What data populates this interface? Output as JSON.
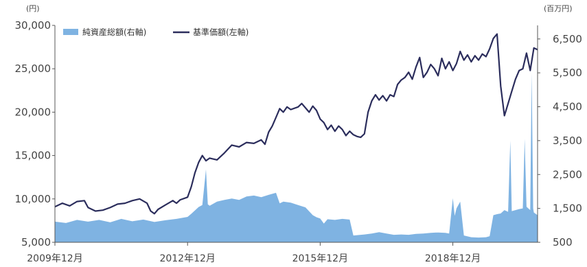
{
  "colors": {
    "line": "#2b2d5c",
    "area": "#7fb3e2",
    "axis": "#555555",
    "tick_text": "#444444"
  },
  "chart_data": {
    "type": "line",
    "left_unit": "(円)",
    "right_unit": "(百万円)",
    "legend": [
      {
        "label": "純資産総額(右軸)",
        "kind": "area"
      },
      {
        "label": "基準価額(左軸)",
        "kind": "line"
      }
    ],
    "left_axis": {
      "ylim": [
        5000,
        30000
      ],
      "ticks": [
        5000,
        10000,
        15000,
        20000,
        25000,
        30000
      ],
      "tick_labels": [
        "5,000",
        "10,000",
        "15,000",
        "20,000",
        "25,000",
        "30,000"
      ]
    },
    "right_axis": {
      "ylim": [
        500,
        6900
      ],
      "ticks": [
        500,
        1500,
        2500,
        3500,
        4500,
        5500,
        6500
      ],
      "tick_labels": [
        "500",
        "1,500",
        "2,500",
        "3,500",
        "4,500",
        "5,500",
        "6,500"
      ]
    },
    "x_ticks": [
      "2009年12月",
      "2012年12月",
      "2015年12月",
      "2018年12月"
    ],
    "x_tick_values": [
      0,
      36,
      72,
      108
    ],
    "x_range": [
      0,
      131
    ],
    "series": [
      {
        "name": "基準価額(左軸)",
        "axis": "left",
        "points": [
          [
            0,
            9100
          ],
          [
            2,
            9500
          ],
          [
            4,
            9200
          ],
          [
            6,
            9700
          ],
          [
            8,
            9800
          ],
          [
            9,
            9000
          ],
          [
            11,
            8600
          ],
          [
            13,
            8700
          ],
          [
            15,
            9000
          ],
          [
            17,
            9400
          ],
          [
            19,
            9500
          ],
          [
            21,
            9800
          ],
          [
            23,
            10000
          ],
          [
            25,
            9500
          ],
          [
            26,
            8600
          ],
          [
            27,
            8300
          ],
          [
            28,
            8800
          ],
          [
            30,
            9300
          ],
          [
            32,
            9800
          ],
          [
            33,
            9500
          ],
          [
            34,
            9900
          ],
          [
            36,
            10200
          ],
          [
            37,
            11400
          ],
          [
            38,
            13000
          ],
          [
            39,
            14200
          ],
          [
            40,
            15000
          ],
          [
            41,
            14400
          ],
          [
            42,
            14700
          ],
          [
            44,
            14500
          ],
          [
            46,
            15300
          ],
          [
            48,
            16200
          ],
          [
            50,
            16000
          ],
          [
            52,
            16500
          ],
          [
            54,
            16400
          ],
          [
            56,
            16800
          ],
          [
            57,
            16300
          ],
          [
            58,
            17700
          ],
          [
            59,
            18400
          ],
          [
            60,
            19400
          ],
          [
            61,
            20400
          ],
          [
            62,
            20000
          ],
          [
            63,
            20600
          ],
          [
            64,
            20300
          ],
          [
            66,
            20600
          ],
          [
            67,
            21000
          ],
          [
            68,
            20500
          ],
          [
            69,
            20000
          ],
          [
            70,
            20700
          ],
          [
            71,
            20200
          ],
          [
            72,
            19200
          ],
          [
            73,
            18800
          ],
          [
            74,
            18000
          ],
          [
            75,
            18500
          ],
          [
            76,
            17800
          ],
          [
            77,
            18400
          ],
          [
            78,
            18000
          ],
          [
            79,
            17300
          ],
          [
            80,
            17800
          ],
          [
            81,
            17400
          ],
          [
            82,
            17200
          ],
          [
            83,
            17100
          ],
          [
            84,
            17500
          ],
          [
            85,
            20000
          ],
          [
            86,
            21300
          ],
          [
            87,
            22000
          ],
          [
            88,
            21400
          ],
          [
            89,
            21900
          ],
          [
            90,
            21300
          ],
          [
            91,
            22000
          ],
          [
            92,
            21800
          ],
          [
            93,
            23200
          ],
          [
            94,
            23700
          ],
          [
            95,
            24000
          ],
          [
            96,
            24600
          ],
          [
            97,
            23800
          ],
          [
            98,
            25200
          ],
          [
            99,
            26300
          ],
          [
            100,
            24000
          ],
          [
            101,
            24600
          ],
          [
            102,
            25500
          ],
          [
            103,
            25000
          ],
          [
            104,
            24200
          ],
          [
            105,
            26200
          ],
          [
            106,
            25000
          ],
          [
            107,
            25800
          ],
          [
            108,
            24800
          ],
          [
            109,
            25600
          ],
          [
            110,
            27000
          ],
          [
            111,
            26000
          ],
          [
            112,
            26600
          ],
          [
            113,
            25800
          ],
          [
            114,
            26500
          ],
          [
            115,
            26000
          ],
          [
            116,
            26700
          ],
          [
            117,
            26400
          ],
          [
            118,
            27300
          ],
          [
            119,
            28500
          ],
          [
            120,
            29000
          ],
          [
            121,
            23000
          ],
          [
            122,
            19600
          ],
          [
            123,
            21000
          ],
          [
            124,
            22400
          ],
          [
            125,
            23800
          ],
          [
            126,
            24800
          ],
          [
            127,
            25000
          ],
          [
            128,
            26800
          ],
          [
            129,
            24800
          ],
          [
            130,
            27400
          ],
          [
            131,
            27200
          ]
        ]
      },
      {
        "name": "純資産総額(右軸)",
        "axis": "right",
        "points": [
          [
            0,
            1110
          ],
          [
            3,
            1070
          ],
          [
            6,
            1160
          ],
          [
            9,
            1110
          ],
          [
            12,
            1160
          ],
          [
            15,
            1090
          ],
          [
            18,
            1190
          ],
          [
            21,
            1120
          ],
          [
            24,
            1170
          ],
          [
            27,
            1100
          ],
          [
            30,
            1150
          ],
          [
            33,
            1190
          ],
          [
            36,
            1250
          ],
          [
            37,
            1340
          ],
          [
            38,
            1440
          ],
          [
            39,
            1540
          ],
          [
            40,
            1600
          ],
          [
            41,
            2650
          ],
          [
            41.5,
            1620
          ],
          [
            42,
            1580
          ],
          [
            44,
            1700
          ],
          [
            46,
            1750
          ],
          [
            48,
            1790
          ],
          [
            50,
            1750
          ],
          [
            52,
            1850
          ],
          [
            54,
            1880
          ],
          [
            56,
            1830
          ],
          [
            58,
            1900
          ],
          [
            60,
            1960
          ],
          [
            61,
            1650
          ],
          [
            62,
            1700
          ],
          [
            64,
            1670
          ],
          [
            66,
            1600
          ],
          [
            68,
            1530
          ],
          [
            70,
            1300
          ],
          [
            71,
            1240
          ],
          [
            72,
            1200
          ],
          [
            73,
            1050
          ],
          [
            74,
            1180
          ],
          [
            76,
            1160
          ],
          [
            78,
            1190
          ],
          [
            80,
            1170
          ],
          [
            81,
            700
          ],
          [
            84,
            730
          ],
          [
            86,
            760
          ],
          [
            88,
            800
          ],
          [
            90,
            760
          ],
          [
            92,
            720
          ],
          [
            94,
            730
          ],
          [
            96,
            720
          ],
          [
            98,
            750
          ],
          [
            100,
            760
          ],
          [
            102,
            780
          ],
          [
            104,
            790
          ],
          [
            106,
            780
          ],
          [
            107,
            760
          ],
          [
            108,
            1800
          ],
          [
            108.5,
            1280
          ],
          [
            109,
            1500
          ],
          [
            110,
            1700
          ],
          [
            111,
            700
          ],
          [
            113,
            650
          ],
          [
            115,
            640
          ],
          [
            117,
            650
          ],
          [
            118,
            680
          ],
          [
            119,
            1300
          ],
          [
            120,
            1330
          ],
          [
            121,
            1350
          ],
          [
            122,
            1450
          ],
          [
            123,
            1400
          ],
          [
            123.6,
            3500
          ],
          [
            124,
            1420
          ],
          [
            125,
            1450
          ],
          [
            126,
            1480
          ],
          [
            127,
            1500
          ],
          [
            127.5,
            3550
          ],
          [
            128,
            1550
          ],
          [
            129,
            1450
          ],
          [
            129.4,
            5500
          ],
          [
            129.8,
            1500
          ],
          [
            130,
            1380
          ],
          [
            131,
            1300
          ]
        ]
      }
    ]
  }
}
